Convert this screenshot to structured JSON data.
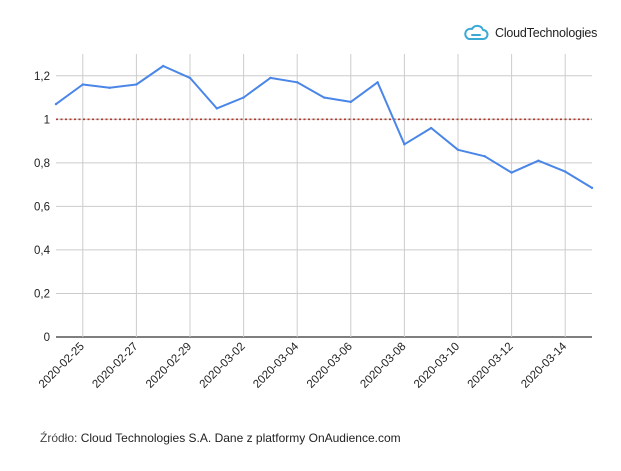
{
  "logo": {
    "text": "CloudTechnologies",
    "icon": "cloud-icon",
    "color": "#3aa9d6"
  },
  "source": {
    "prefix": "Źródło:",
    "text": "Cloud Technologies S.A. Dane z platformy OnAudience.com"
  },
  "chart_data": {
    "type": "line",
    "title": "",
    "xlabel": "",
    "ylabel": "",
    "x": [
      "2020-02-24",
      "2020-02-25",
      "2020-02-26",
      "2020-02-27",
      "2020-02-28",
      "2020-02-29",
      "2020-03-01",
      "2020-03-02",
      "2020-03-03",
      "2020-03-04",
      "2020-03-05",
      "2020-03-06",
      "2020-03-07",
      "2020-03-08",
      "2020-03-09",
      "2020-03-10",
      "2020-03-11",
      "2020-03-12",
      "2020-03-13",
      "2020-03-14",
      "2020-03-15"
    ],
    "x_tick_labels": [
      "2020-02-25",
      "2020-02-27",
      "2020-02-29",
      "2020-03-02",
      "2020-03-04",
      "2020-03-06",
      "2020-03-08",
      "2020-03-10",
      "2020-03-12",
      "2020-03-14"
    ],
    "series": [
      {
        "values": [
          1.07,
          1.16,
          1.145,
          1.16,
          1.245,
          1.19,
          1.05,
          1.1,
          1.19,
          1.17,
          1.1,
          1.08,
          1.17,
          0.885,
          0.96,
          0.86,
          0.83,
          0.755,
          0.81,
          0.76,
          0.685
        ],
        "color": "#4a86e8"
      }
    ],
    "reference_line": {
      "y": 1,
      "color": "#b03a2e",
      "style": "dotted"
    },
    "y_ticks": [
      "0",
      "0,2",
      "0,4",
      "0,6",
      "0,8",
      "1",
      "1,2"
    ],
    "y_tick_values": [
      0,
      0.2,
      0.4,
      0.6,
      0.8,
      1,
      1.2
    ],
    "ylim": [
      0,
      1.3
    ],
    "grid": true,
    "legend": "none"
  }
}
